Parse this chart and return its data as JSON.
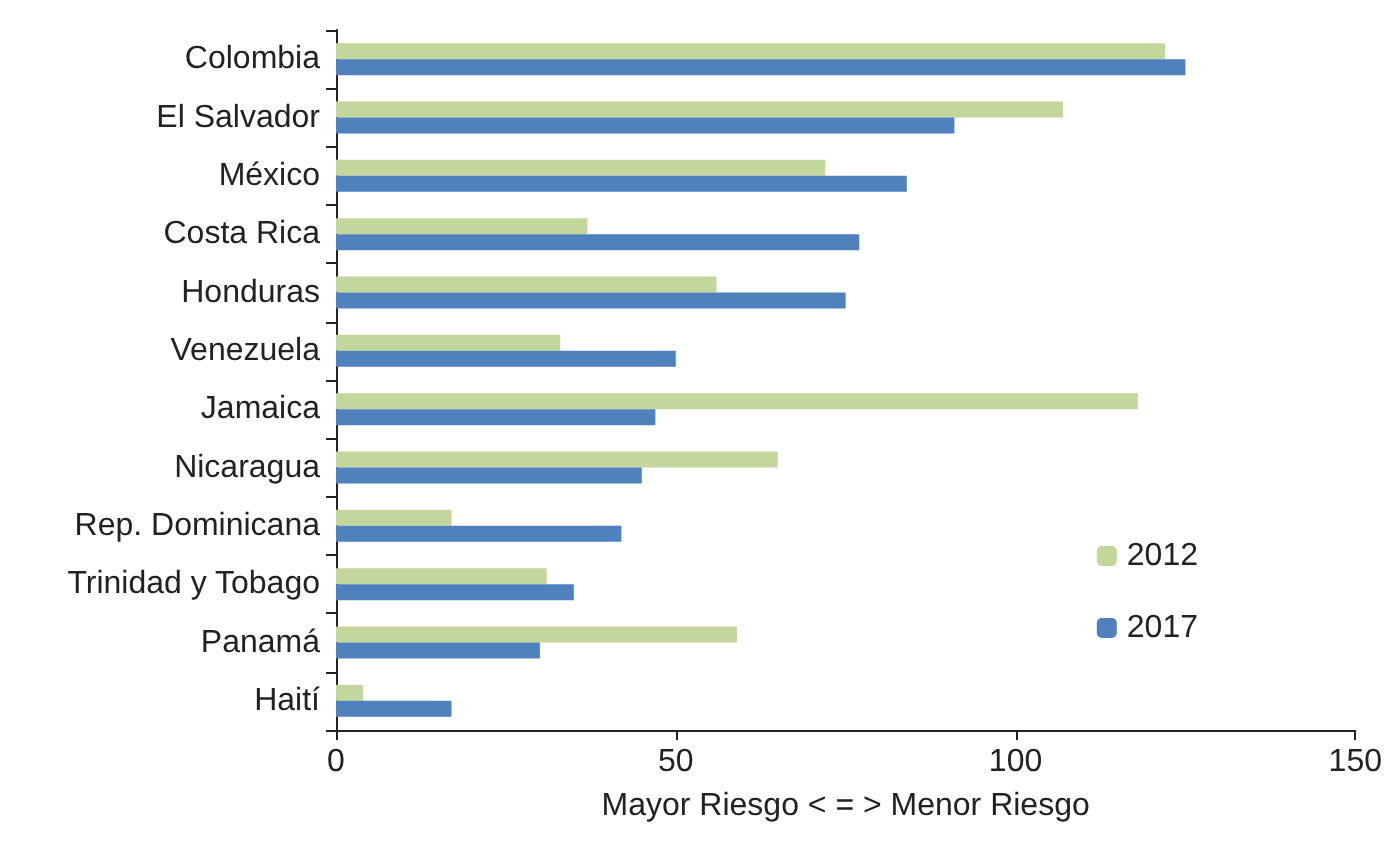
{
  "chart_data": {
    "type": "bar",
    "orientation": "horizontal",
    "xlabel": "Mayor Riesgo < = > Menor Riesgo",
    "categories": [
      "Colombia",
      "El Salvador",
      "México",
      "Costa Rica",
      "Honduras",
      "Venezuela",
      "Jamaica",
      "Nicaragua",
      "Rep. Dominicana",
      "Trinidad y Tobago",
      "Panamá",
      "Haití"
    ],
    "series": [
      {
        "name": "2012",
        "color": "#c3d69b",
        "values": [
          122,
          107,
          72,
          37,
          56,
          33,
          118,
          65,
          17,
          31,
          59,
          4
        ]
      },
      {
        "name": "2017",
        "color": "#4f81bd",
        "values": [
          125,
          91,
          84,
          77,
          75,
          50,
          47,
          45,
          42,
          35,
          30,
          17
        ]
      }
    ],
    "xlim": [
      0,
      150
    ],
    "xticks": [
      0,
      50,
      100,
      150
    ],
    "grid": false,
    "legend": "bottom right"
  }
}
